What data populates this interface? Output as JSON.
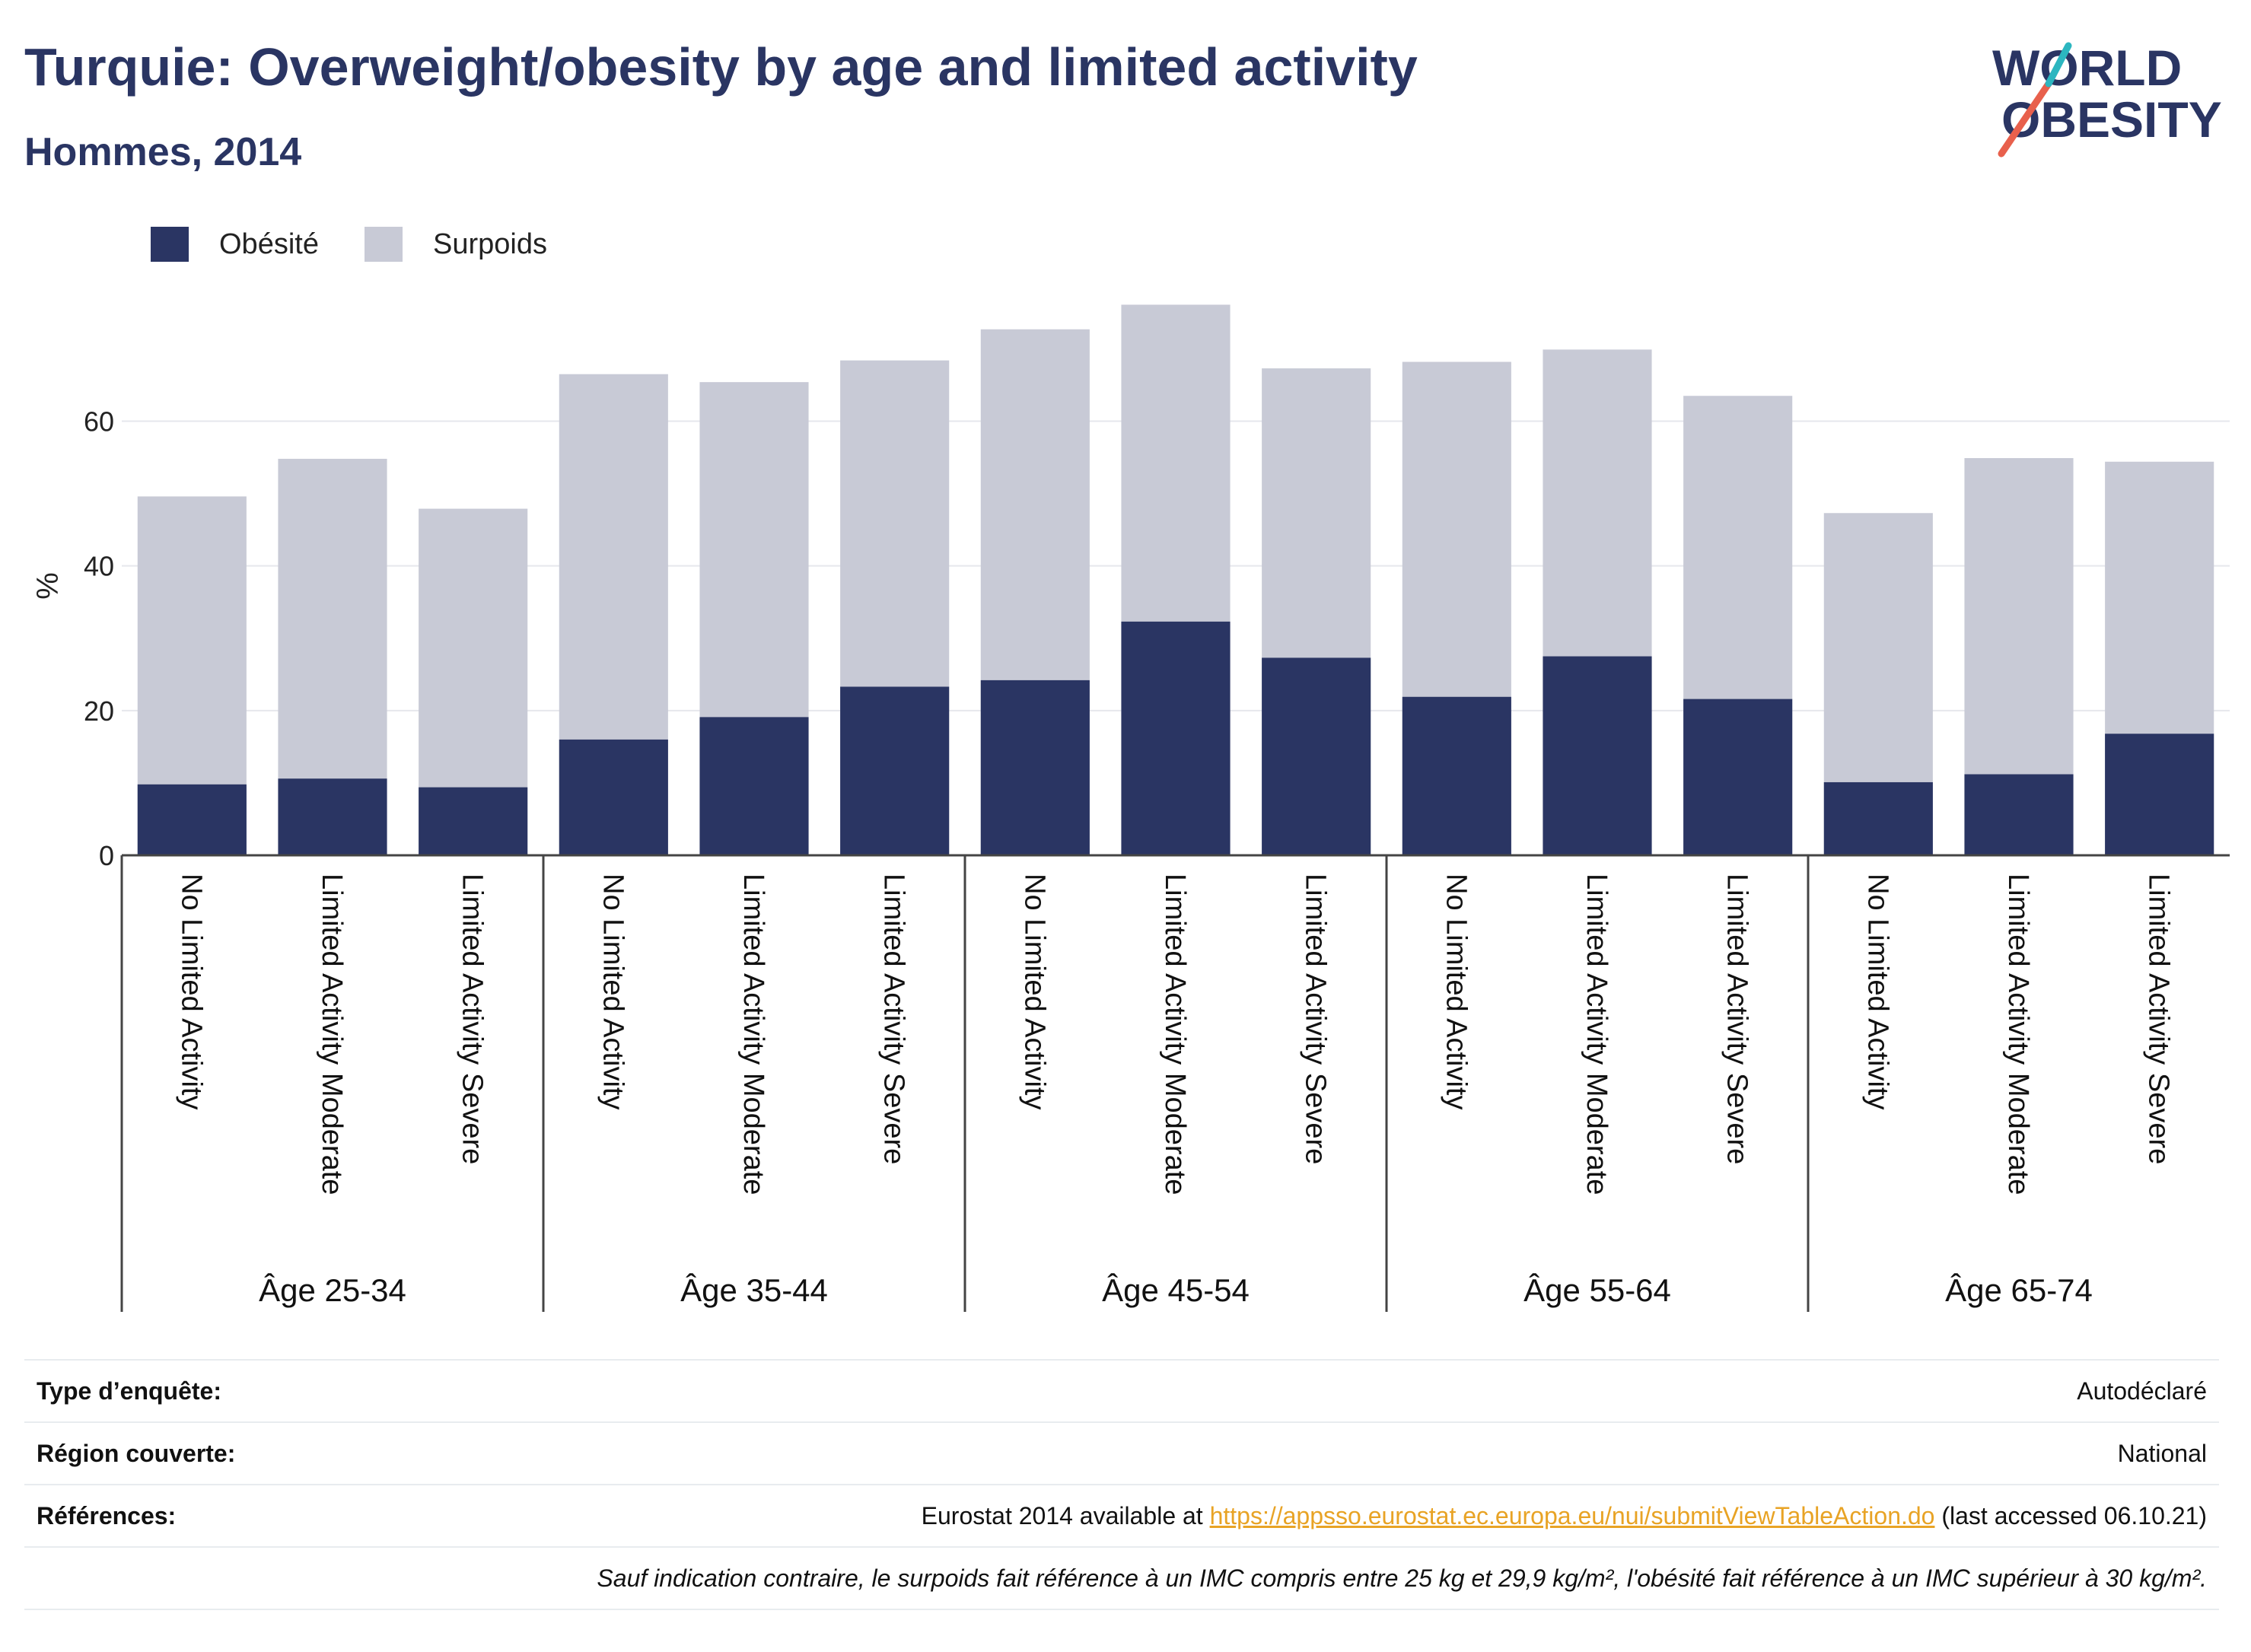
{
  "header": {
    "title": "Turquie: Overweight/obesity by age and limited activity",
    "subtitle": "Hommes, 2014"
  },
  "logo": {
    "line1": "WORLD",
    "line2": "OBESITY",
    "colors": {
      "text": "#2a3563",
      "slash_red": "#e8604c",
      "slash_teal": "#2cb6c0"
    }
  },
  "colors": {
    "obesity": "#2a3563",
    "overweight": "#c8cad6",
    "grid": "#e6e7ec",
    "axis": "#444444"
  },
  "chart_data": {
    "type": "bar",
    "stacked": false,
    "overlay": true,
    "ylabel": "%",
    "ylim": [
      0,
      80
    ],
    "yticks": [
      0,
      20,
      40,
      60
    ],
    "grid": true,
    "legend_position": "top-left",
    "groups": [
      "Âge 25-34",
      "Âge 35-44",
      "Âge 45-54",
      "Âge 55-64",
      "Âge 65-74"
    ],
    "subcategories": [
      "No Limited Activity",
      "Limited Activity Moderate",
      "Limited Activity Severe"
    ],
    "series": [
      {
        "name": "Obésité",
        "values": [
          9.8,
          10.6,
          9.4,
          16.0,
          19.1,
          23.3,
          24.2,
          32.3,
          27.3,
          21.9,
          27.5,
          21.6,
          10.1,
          11.2,
          16.8
        ]
      },
      {
        "name": "Surpoids",
        "values": [
          49.6,
          54.8,
          47.9,
          66.5,
          65.4,
          68.4,
          72.7,
          76.1,
          67.3,
          68.2,
          69.9,
          63.5,
          47.3,
          54.9,
          54.4
        ]
      }
    ]
  },
  "info": {
    "rows": [
      {
        "label": "Type d’enquête:",
        "value": "Autodéclaré"
      },
      {
        "label": "Région couverte:",
        "value": "National"
      }
    ],
    "references": {
      "label": "Références:",
      "prefix": "Eurostat 2014 available at ",
      "link": "https://appsso.eurostat.ec.europa.eu/nui/submitViewTableAction.do",
      "suffix": " (last accessed 06.10.21)"
    },
    "note": "Sauf indication contraire, le surpoids fait référence à un IMC compris entre 25 kg et 29,9 kg/m², l'obésité fait référence à un IMC supérieur à 30 kg/m²."
  }
}
